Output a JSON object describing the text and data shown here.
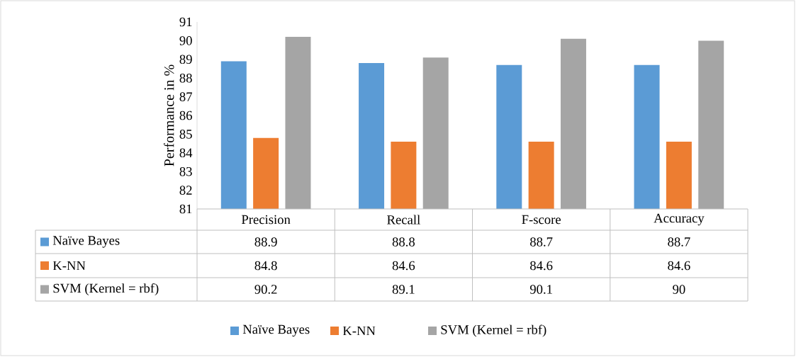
{
  "chart_data": {
    "type": "bar",
    "ylabel": "Performance in %",
    "categories": [
      "Precision",
      "Recall",
      "F-score",
      "Accuracy"
    ],
    "series": [
      {
        "name": "Naïve Bayes",
        "color": "#5b9bd5",
        "values": [
          88.9,
          88.8,
          88.7,
          88.7
        ],
        "value_labels": [
          "88.9",
          "88.8",
          "88.7",
          "88.7"
        ]
      },
      {
        "name": "K-NN",
        "color": "#ed7d31",
        "values": [
          84.8,
          84.6,
          84.6,
          84.6
        ],
        "value_labels": [
          "84.8",
          "84.6",
          "84.6",
          "84.6"
        ]
      },
      {
        "name": "SVM (Kernel = rbf)",
        "color": "#a5a5a5",
        "values": [
          90.2,
          89.1,
          90.1,
          90
        ],
        "value_labels": [
          "90.2",
          "89.1",
          "90.1",
          "90"
        ]
      }
    ],
    "ylim": [
      81,
      91
    ],
    "yticks": [
      81,
      82,
      83,
      84,
      85,
      86,
      87,
      88,
      89,
      90,
      91
    ],
    "legend": "bottom"
  }
}
